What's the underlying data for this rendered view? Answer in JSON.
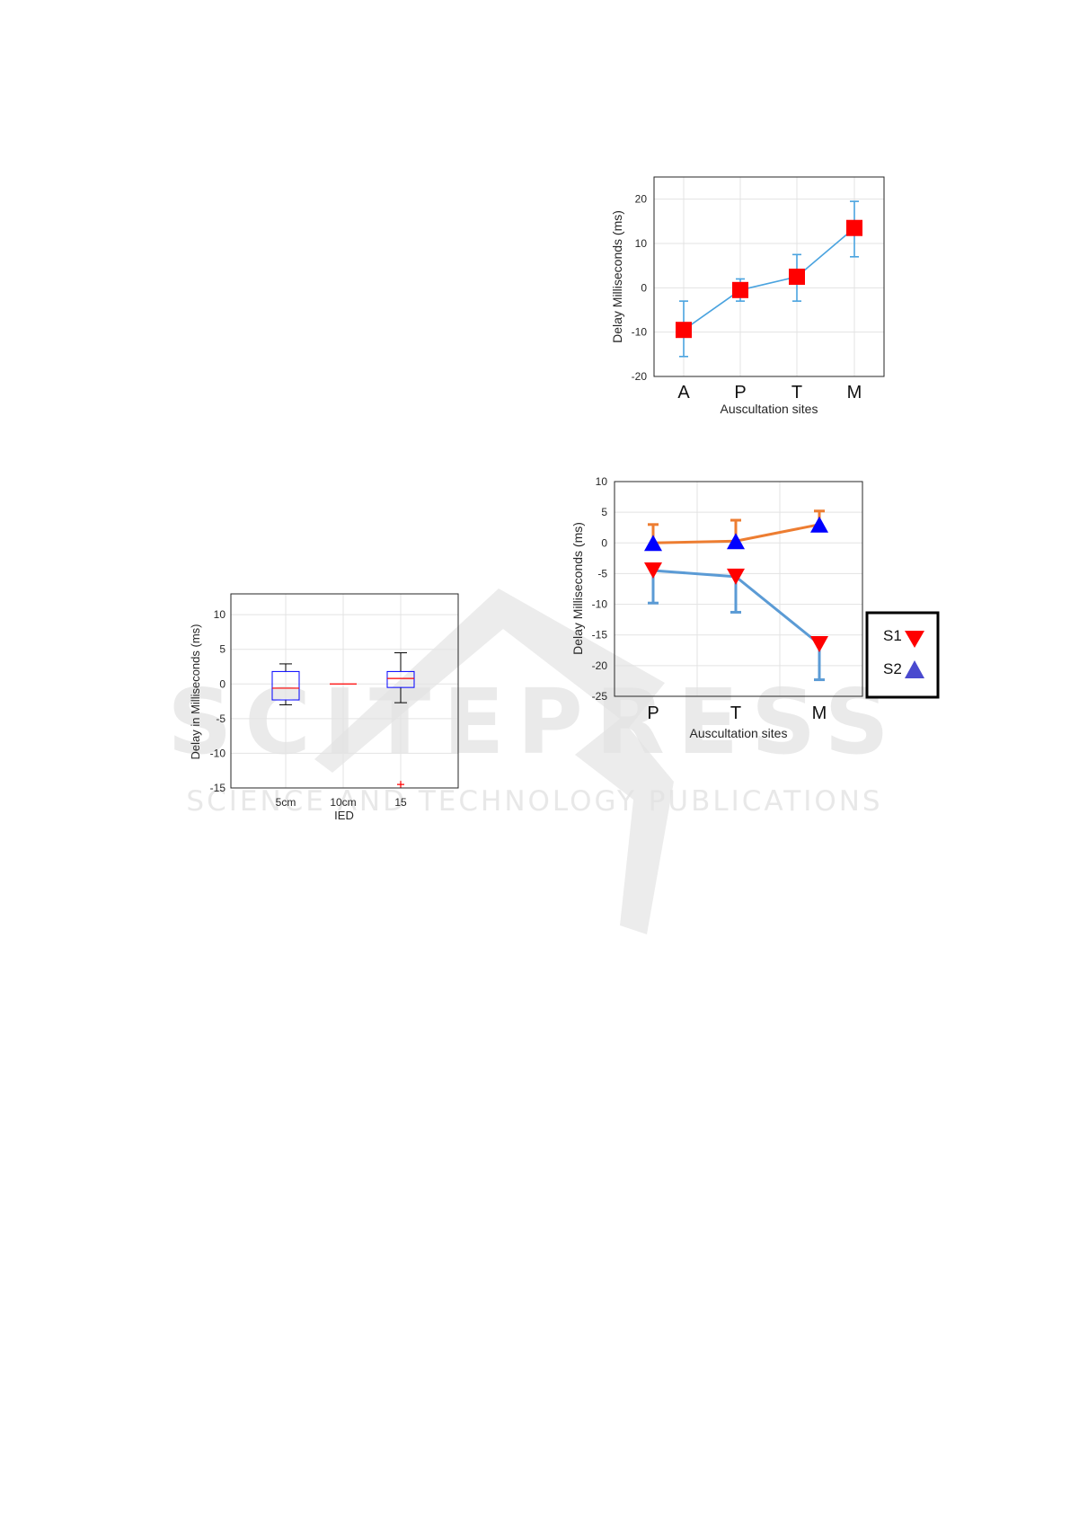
{
  "watermark": {
    "brand": "SCITEPRESS",
    "tagline": "SCIENCE AND TECHNOLOGY PUBLICATIONS"
  },
  "chart_data": [
    {
      "type": "line",
      "categories": [
        "A",
        "P",
        "T",
        "M"
      ],
      "series": [
        {
          "values": [
            -9.5,
            -0.5,
            2.5,
            13.5
          ],
          "err_low": [
            -15.5,
            -3,
            -3,
            7
          ],
          "err_high": [
            -3,
            2,
            7.5,
            19.5
          ],
          "marker": "square",
          "color": "#ff0000",
          "line_color": "#4aa3df"
        }
      ],
      "xlabel": "Auscultation sites",
      "ylabel": "Delay Milliseconds (ms)",
      "ylim": [
        -20,
        25
      ],
      "yticks": [
        -20,
        -10,
        0,
        10,
        20
      ],
      "grid": true
    },
    {
      "type": "line",
      "categories": [
        "P",
        "T",
        "M"
      ],
      "series": [
        {
          "name": "S1",
          "values": [
            -4.5,
            -5.5,
            -16.5
          ],
          "err_low": [
            -9.8,
            -11.3,
            -22.3
          ],
          "err_high": [
            -4.5,
            -5.5,
            -16.5
          ],
          "marker": "triangle-down",
          "color": "#ff0000",
          "line_color": "#5b9bd5"
        },
        {
          "name": "S2",
          "values": [
            0,
            0.3,
            3
          ],
          "err_low": [
            0,
            0.3,
            3
          ],
          "err_high": [
            3,
            3.7,
            5.2
          ],
          "marker": "triangle-up",
          "color": "#0000ff",
          "line_color": "#ed7d31"
        }
      ],
      "xlabel": "Auscultation sites",
      "ylabel": "Delay Milliseconds (ms)",
      "ylim": [
        -25,
        10
      ],
      "yticks": [
        -25,
        -20,
        -15,
        -10,
        -5,
        0,
        5,
        10
      ],
      "legend_position": "right",
      "grid": true
    },
    {
      "type": "box",
      "categories": [
        "5cm",
        "10cm",
        "15"
      ],
      "boxes": [
        {
          "whisker_low": -3,
          "q1": -2.3,
          "median": -0.6,
          "q3": 1.8,
          "whisker_high": 2.9,
          "outliers": []
        },
        {
          "whisker_low": 0,
          "q1": 0,
          "median": 0,
          "q3": 0,
          "whisker_high": 0,
          "outliers": []
        },
        {
          "whisker_low": -2.7,
          "q1": -0.5,
          "median": 0.8,
          "q3": 1.8,
          "whisker_high": 4.5,
          "outliers": [
            -14.5
          ]
        }
      ],
      "xlabel": "IED",
      "ylabel": "Delay in Milliseconds (ms)",
      "ylim": [
        -15,
        13
      ],
      "yticks": [
        -15,
        -10,
        -5,
        0,
        5,
        10
      ],
      "box_color": "#0000ff",
      "median_color": "#ff0000",
      "whisker_color": "#000000",
      "grid": true
    }
  ]
}
